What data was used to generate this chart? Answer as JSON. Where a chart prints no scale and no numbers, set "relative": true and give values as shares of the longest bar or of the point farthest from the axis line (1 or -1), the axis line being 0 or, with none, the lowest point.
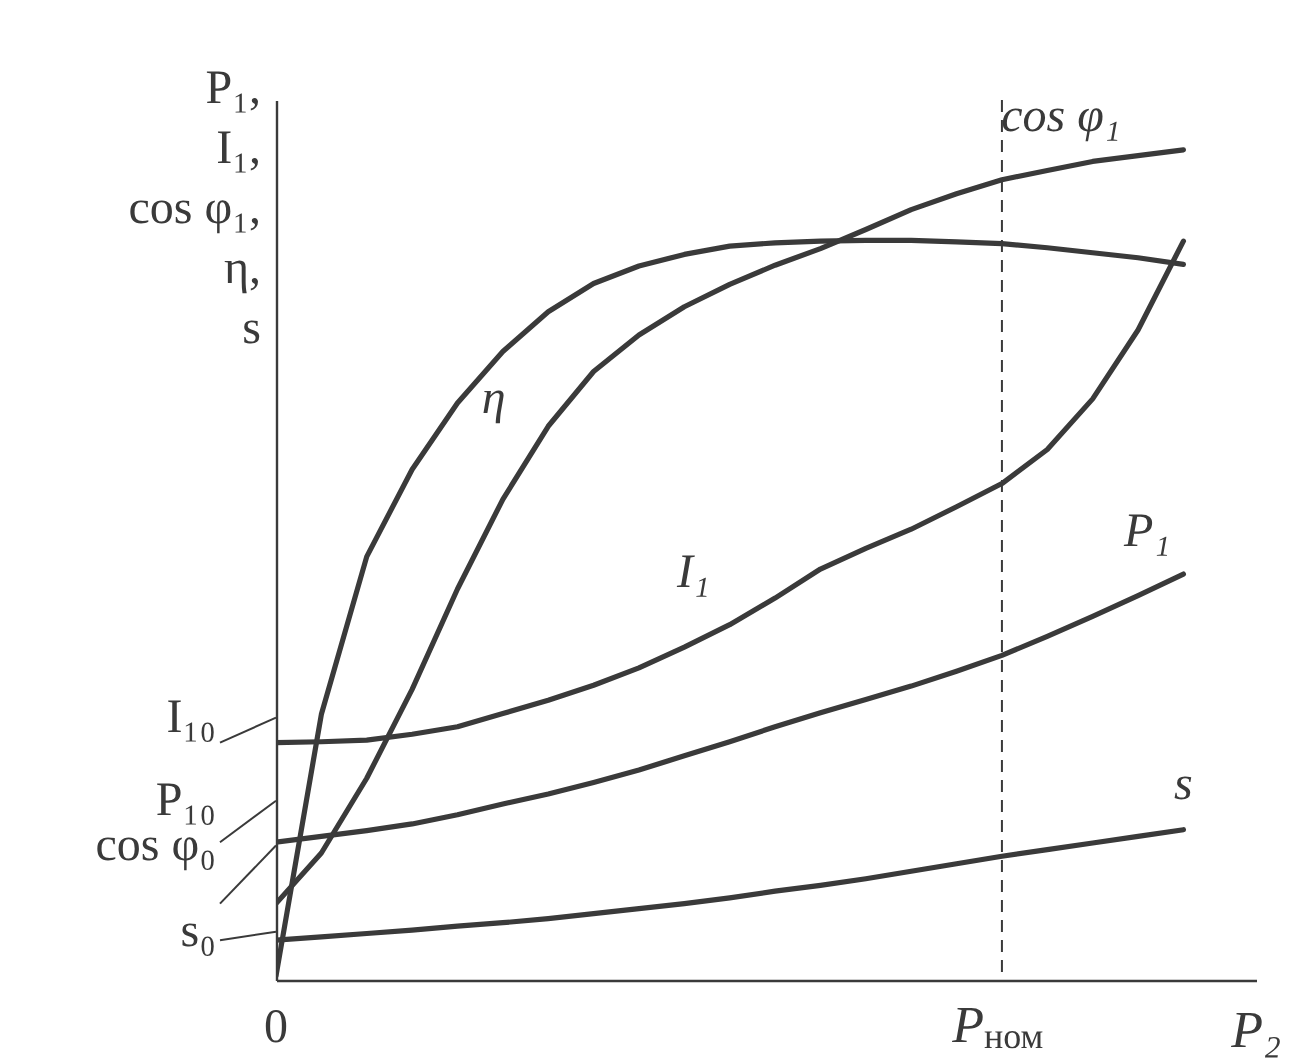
{
  "chart_data": {
    "type": "line",
    "relative": true,
    "xlabel": "P₂",
    "ylabel": "P₁,\nI₁,\ncos φ₁,\nη,\ns",
    "categories": [
      "0",
      null,
      null,
      null,
      null,
      null,
      null,
      null,
      null,
      null,
      null,
      null,
      null,
      null,
      null,
      null,
      "P$_{ном}$",
      null,
      null,
      null,
      null
    ],
    "grid": false,
    "legend": false,
    "marker": "none",
    "line_style": "solid",
    "series": [
      {
        "name": "cos φ₁",
        "color": "#3a3a3a",
        "values": [
          0.092,
          0.153,
          0.243,
          0.35,
          0.471,
          0.579,
          0.667,
          0.733,
          0.777,
          0.811,
          0.838,
          0.861,
          0.881,
          0.904,
          0.928,
          0.947,
          0.964,
          0.975,
          0.986,
          0.993,
          1.0
        ]
      },
      {
        "name": "η",
        "color": "#3a3a3a",
        "values": [
          0.005,
          0.32,
          0.51,
          0.615,
          0.695,
          0.757,
          0.805,
          0.839,
          0.86,
          0.874,
          0.884,
          0.888,
          0.89,
          0.891,
          0.891,
          0.889,
          0.887,
          0.882,
          0.876,
          0.87,
          0.862
        ]
      },
      {
        "name": "I₁",
        "color": "#3a3a3a",
        "values": [
          0.286,
          0.287,
          0.289,
          0.296,
          0.305,
          0.321,
          0.337,
          0.355,
          0.376,
          0.401,
          0.428,
          0.46,
          0.495,
          0.52,
          0.543,
          0.57,
          0.598,
          0.639,
          0.7,
          0.783,
          0.89
        ]
      },
      {
        "name": "P₁",
        "color": "#3a3a3a",
        "values": [
          0.166,
          0.173,
          0.18,
          0.188,
          0.199,
          0.212,
          0.224,
          0.238,
          0.253,
          0.27,
          0.287,
          0.305,
          0.322,
          0.338,
          0.354,
          0.372,
          0.391,
          0.414,
          0.438,
          0.463,
          0.489
        ]
      },
      {
        "name": "s",
        "color": "#3a3a3a",
        "values": [
          0.048,
          0.052,
          0.056,
          0.06,
          0.065,
          0.069,
          0.074,
          0.08,
          0.086,
          0.092,
          0.099,
          0.107,
          0.114,
          0.122,
          0.131,
          0.14,
          0.149,
          0.157,
          0.165,
          0.173,
          0.181
        ]
      }
    ],
    "ref_lines": [
      {
        "axis": "x",
        "value": "P$_{ном}$",
        "line_style": "dashed"
      }
    ],
    "annotations": [
      "I₁₀",
      "P₁₀",
      "cos φ₀",
      "s₀"
    ]
  }
}
